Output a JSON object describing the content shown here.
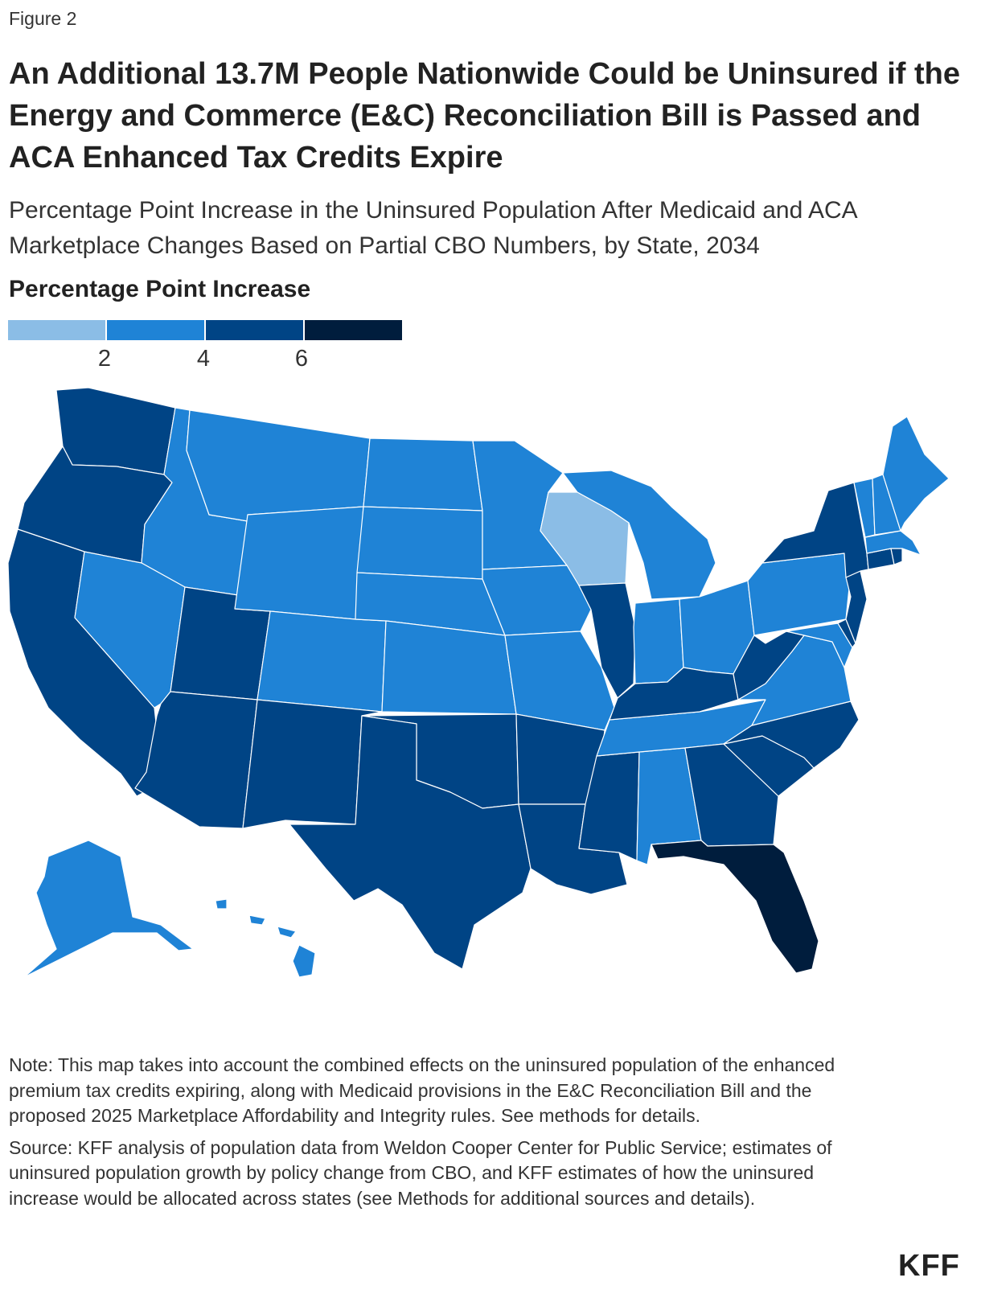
{
  "figure_label": "Figure 2",
  "title": "An Additional 13.7M People Nationwide Could be Uninsured if the Energy and Commerce (E&C) Reconciliation Bill is Passed and ACA Enhanced Tax Credits Expire",
  "subtitle": "Percentage Point Increase in the Uninsured Population After Medicaid and ACA Marketplace Changes Based on Partial CBO Numbers, by State, 2034",
  "legend": {
    "title": "Percentage Point Increase",
    "colors": [
      "#8bbde6",
      "#1f83d6",
      "#004485",
      "#001d3d"
    ],
    "ticks": [
      "2",
      "4",
      "6"
    ]
  },
  "map_data": {
    "metric": "Percentage point increase in uninsured population, 2034",
    "bins": [
      {
        "range": "<2",
        "color": "#8bbde6",
        "states": [
          "WI"
        ]
      },
      {
        "range": "2-4",
        "color": "#1f83d6",
        "states": [
          "ID",
          "MT",
          "ND",
          "SD",
          "WY",
          "NV",
          "CO",
          "NE",
          "KS",
          "MN",
          "IA",
          "MO",
          "MI",
          "IN",
          "OH",
          "PA",
          "VA",
          "TN",
          "AL",
          "ME",
          "NH",
          "VT",
          "MA",
          "MD",
          "AK",
          "HI"
        ]
      },
      {
        "range": "4-6",
        "color": "#004485",
        "states": [
          "WA",
          "OR",
          "CA",
          "UT",
          "AZ",
          "NM",
          "OK",
          "TX",
          "AR",
          "LA",
          "MS",
          "IL",
          "KY",
          "WV",
          "NC",
          "SC",
          "GA",
          "NY",
          "NJ",
          "DE",
          "CT",
          "RI"
        ]
      },
      {
        "range": ">6",
        "color": "#001d3d",
        "states": [
          "FL"
        ]
      }
    ]
  },
  "note": "Note: This map takes into account the combined effects on the uninsured population of the enhanced premium tax credits expiring, along with Medicaid provisions in the E&C Reconciliation Bill and the proposed 2025 Marketplace Affordability and Integrity rules. See methods for details.",
  "source": "Source: KFF analysis of population data from Weldon Cooper Center for Public Service; estimates of uninsured population growth by policy change from CBO, and KFF estimates of how the uninsured increase would be allocated across states (see Methods for additional sources and details).",
  "logo": "KFF"
}
